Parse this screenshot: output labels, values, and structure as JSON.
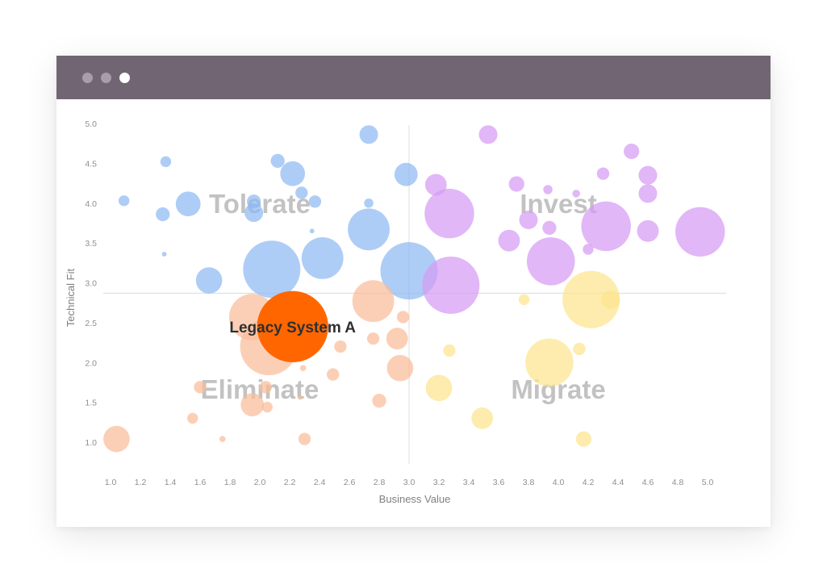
{
  "window": {
    "buttons": [
      "close-dot",
      "minimize-dot",
      "maximize-dot"
    ],
    "titlebar_color": "#716573"
  },
  "chart_data": {
    "type": "scatter",
    "variant": "bubble",
    "title": "",
    "xlabel": "Business Value",
    "ylabel": "Technical Fit",
    "xlim": [
      1.0,
      5.0
    ],
    "ylim": [
      1.0,
      5.0
    ],
    "x_ticks": [
      "1.0",
      "1.2",
      "1.4",
      "1.6",
      "1.8",
      "2.0",
      "2.2",
      "2.4",
      "2.6",
      "2.8",
      "3.0",
      "3.2",
      "3.4",
      "3.6",
      "3.8",
      "4.0",
      "4.2",
      "4.4",
      "4.6",
      "4.8",
      "5.0"
    ],
    "y_ticks": [
      "1.0",
      "1.5",
      "2.0",
      "2.5",
      "3.0",
      "3.5",
      "4.0",
      "4.5",
      "5.0"
    ],
    "divider": {
      "x": 3.0,
      "y": 2.87
    },
    "quadrants": [
      {
        "label": "Tolerate",
        "x": 2.0,
        "y": 4.0
      },
      {
        "label": "Invest",
        "x": 4.0,
        "y": 4.0
      },
      {
        "label": "Eliminate",
        "x": 2.0,
        "y": 1.67
      },
      {
        "label": "Migrate",
        "x": 4.0,
        "y": 1.67
      }
    ],
    "series": [
      {
        "name": "Tolerate",
        "color": "#8fbaf3",
        "points": [
          {
            "x": 1.09,
            "y": 4.03,
            "size": 0.07
          },
          {
            "x": 1.37,
            "y": 4.52,
            "size": 0.07
          },
          {
            "x": 1.35,
            "y": 3.86,
            "size": 0.09
          },
          {
            "x": 1.52,
            "y": 3.99,
            "size": 0.16
          },
          {
            "x": 1.36,
            "y": 3.36,
            "size": 0.03
          },
          {
            "x": 2.12,
            "y": 4.53,
            "size": 0.09
          },
          {
            "x": 2.22,
            "y": 4.37,
            "size": 0.16
          },
          {
            "x": 2.28,
            "y": 4.13,
            "size": 0.08
          },
          {
            "x": 1.96,
            "y": 4.02,
            "size": 0.09
          },
          {
            "x": 1.96,
            "y": 3.88,
            "size": 0.12
          },
          {
            "x": 2.37,
            "y": 4.02,
            "size": 0.08
          },
          {
            "x": 2.35,
            "y": 3.65,
            "size": 0.03
          },
          {
            "x": 2.73,
            "y": 4.86,
            "size": 0.12
          },
          {
            "x": 2.73,
            "y": 4.0,
            "size": 0.06
          },
          {
            "x": 2.73,
            "y": 3.67,
            "size": 0.27
          },
          {
            "x": 2.98,
            "y": 4.36,
            "size": 0.15
          },
          {
            "x": 2.42,
            "y": 3.31,
            "size": 0.27
          },
          {
            "x": 2.08,
            "y": 3.17,
            "size": 0.37
          },
          {
            "x": 1.66,
            "y": 3.03,
            "size": 0.17
          },
          {
            "x": 3.0,
            "y": 3.15,
            "size": 0.37
          }
        ]
      },
      {
        "name": "Invest",
        "color": "#d59bf4",
        "points": [
          {
            "x": 3.53,
            "y": 4.86,
            "size": 0.12
          },
          {
            "x": 4.49,
            "y": 4.65,
            "size": 0.1
          },
          {
            "x": 3.18,
            "y": 4.23,
            "size": 0.14
          },
          {
            "x": 3.72,
            "y": 4.24,
            "size": 0.1
          },
          {
            "x": 3.93,
            "y": 4.17,
            "size": 0.06
          },
          {
            "x": 4.12,
            "y": 4.12,
            "size": 0.05
          },
          {
            "x": 4.3,
            "y": 4.37,
            "size": 0.08
          },
          {
            "x": 4.6,
            "y": 4.35,
            "size": 0.12
          },
          {
            "x": 4.6,
            "y": 4.12,
            "size": 0.12
          },
          {
            "x": 3.27,
            "y": 3.87,
            "size": 0.32
          },
          {
            "x": 3.8,
            "y": 3.79,
            "size": 0.12
          },
          {
            "x": 3.94,
            "y": 3.69,
            "size": 0.09
          },
          {
            "x": 3.67,
            "y": 3.53,
            "size": 0.14
          },
          {
            "x": 4.2,
            "y": 3.42,
            "size": 0.07
          },
          {
            "x": 4.32,
            "y": 3.71,
            "size": 0.32
          },
          {
            "x": 4.6,
            "y": 3.65,
            "size": 0.14
          },
          {
            "x": 4.95,
            "y": 3.64,
            "size": 0.32
          },
          {
            "x": 3.95,
            "y": 3.27,
            "size": 0.31
          },
          {
            "x": 3.28,
            "y": 2.97,
            "size": 0.37
          }
        ]
      },
      {
        "name": "Migrate",
        "color": "#fce48e",
        "points": [
          {
            "x": 3.77,
            "y": 2.79,
            "size": 0.07
          },
          {
            "x": 4.22,
            "y": 2.79,
            "size": 0.37
          },
          {
            "x": 4.35,
            "y": 2.79,
            "size": 0.12
          },
          {
            "x": 3.27,
            "y": 2.15,
            "size": 0.08
          },
          {
            "x": 4.14,
            "y": 2.17,
            "size": 0.08
          },
          {
            "x": 3.94,
            "y": 2.0,
            "size": 0.31
          },
          {
            "x": 3.2,
            "y": 1.68,
            "size": 0.17
          },
          {
            "x": 3.49,
            "y": 1.3,
            "size": 0.14
          },
          {
            "x": 4.17,
            "y": 1.04,
            "size": 0.1
          }
        ]
      },
      {
        "name": "Eliminate",
        "color": "#f9bd9a",
        "points": [
          {
            "x": 1.95,
            "y": 2.57,
            "size": 0.3
          },
          {
            "x": 2.06,
            "y": 2.2,
            "size": 0.37
          },
          {
            "x": 2.54,
            "y": 2.2,
            "size": 0.08
          },
          {
            "x": 2.76,
            "y": 2.77,
            "size": 0.27
          },
          {
            "x": 2.96,
            "y": 2.57,
            "size": 0.08
          },
          {
            "x": 2.92,
            "y": 2.3,
            "size": 0.14
          },
          {
            "x": 2.76,
            "y": 2.3,
            "size": 0.08
          },
          {
            "x": 2.94,
            "y": 1.93,
            "size": 0.17
          },
          {
            "x": 2.49,
            "y": 1.85,
            "size": 0.08
          },
          {
            "x": 2.29,
            "y": 1.93,
            "size": 0.04
          },
          {
            "x": 2.27,
            "y": 1.56,
            "size": 0.03
          },
          {
            "x": 2.04,
            "y": 1.69,
            "size": 0.08
          },
          {
            "x": 1.6,
            "y": 1.69,
            "size": 0.08
          },
          {
            "x": 1.95,
            "y": 1.47,
            "size": 0.15
          },
          {
            "x": 2.05,
            "y": 1.44,
            "size": 0.07
          },
          {
            "x": 1.55,
            "y": 1.3,
            "size": 0.07
          },
          {
            "x": 1.75,
            "y": 1.04,
            "size": 0.04
          },
          {
            "x": 2.3,
            "y": 1.04,
            "size": 0.08
          },
          {
            "x": 2.8,
            "y": 1.52,
            "size": 0.09
          },
          {
            "x": 1.04,
            "y": 1.04,
            "size": 0.17
          }
        ]
      }
    ],
    "highlight": {
      "label": "Legacy System A",
      "x": 2.22,
      "y": 2.45,
      "size": 0.46,
      "color": "#ff6600"
    }
  }
}
